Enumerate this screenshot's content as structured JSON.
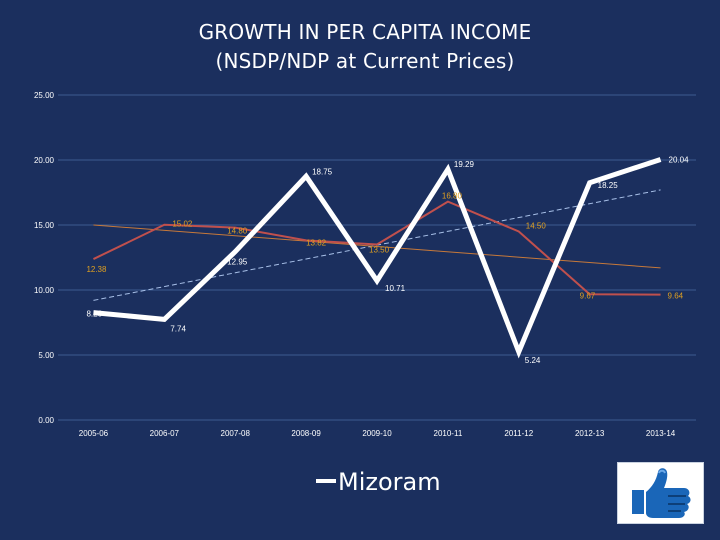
{
  "title": {
    "line1": "GROWTH IN PER CAPITA INCOME",
    "line2": "(NSDP/NDP at Current Prices)"
  },
  "legend": {
    "label": "Mizoram"
  },
  "like_icon": "thumbs-up-icon",
  "colors": {
    "background": "#1b2f5e",
    "mizoram": "#ffffff",
    "second_series": "#c0504d",
    "trend_mizoram": "#a8c0e8",
    "trend_second": "#c7793a",
    "label_second": "#e0a020",
    "gridline": "#3d5b90",
    "axis_text": "#ffffff"
  },
  "chart_data": {
    "type": "line",
    "title": "GROWTH IN PER CAPITA INCOME (NSDP/NDP at Current Prices)",
    "xlabel": "",
    "ylabel": "",
    "ylim": [
      0,
      25
    ],
    "yticks": [
      "0.00",
      "5.00",
      "10.00",
      "15.00",
      "20.00",
      "25.00"
    ],
    "grid": true,
    "legend_position": "bottom-center",
    "categories": [
      "2005-06",
      "2006-07",
      "2007-08",
      "2008-09",
      "2009-10",
      "2010-11",
      "2011-12",
      "2012-13",
      "2013-14"
    ],
    "series": [
      {
        "name": "Mizoram",
        "style": "thick-white",
        "values": [
          8.26,
          7.74,
          12.95,
          18.75,
          10.71,
          19.29,
          5.24,
          18.25,
          20.04
        ],
        "labels": [
          "8.26",
          "7.74",
          "12.95",
          "18.75",
          "10.71",
          "19.29",
          "5.24",
          "18.25",
          "20.04"
        ]
      },
      {
        "name": "",
        "style": "thin-red",
        "values": [
          12.38,
          15.02,
          14.8,
          13.82,
          13.5,
          16.8,
          14.5,
          9.67,
          9.64
        ],
        "labels": [
          "12.38",
          "15.02",
          "14.80",
          "13.82",
          "13.50",
          "16.80",
          "14.50",
          "9.67",
          "9.64"
        ]
      }
    ],
    "trendlines": [
      {
        "of": "Mizoram",
        "style": "dashed",
        "start": 9.2,
        "end": 17.7
      },
      {
        "of": "second",
        "style": "solid-thin",
        "start": 15.0,
        "end": 11.7
      }
    ]
  }
}
